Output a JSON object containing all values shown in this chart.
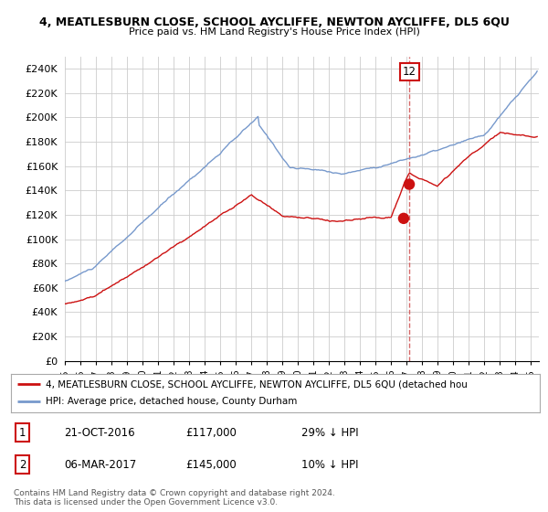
{
  "title1": "4, MEATLESBURN CLOSE, SCHOOL AYCLIFFE, NEWTON AYCLIFFE, DL5 6QU",
  "title2": "Price paid vs. HM Land Registry's House Price Index (HPI)",
  "ylabel_ticks": [
    "£0",
    "£20K",
    "£40K",
    "£60K",
    "£80K",
    "£100K",
    "£120K",
    "£140K",
    "£160K",
    "£180K",
    "£200K",
    "£220K",
    "£240K"
  ],
  "ytick_values": [
    0,
    20000,
    40000,
    60000,
    80000,
    100000,
    120000,
    140000,
    160000,
    180000,
    200000,
    220000,
    240000
  ],
  "ylim": [
    0,
    250000
  ],
  "xlim_start": 1995.0,
  "xlim_end": 2025.5,
  "hpi_color": "#7799cc",
  "price_color": "#cc1111",
  "vline_color": "#cc4444",
  "point1_date": 2016.81,
  "point1_price": 117000,
  "point2_date": 2017.17,
  "point2_price": 145000,
  "legend_label1": "4, MEATLESBURN CLOSE, SCHOOL AYCLIFFE, NEWTON AYCLIFFE, DL5 6QU (detached hou",
  "legend_label2": "HPI: Average price, detached house, County Durham",
  "table_row1_num": "1",
  "table_row1_date": "21-OCT-2016",
  "table_row1_price": "£117,000",
  "table_row1_hpi": "29% ↓ HPI",
  "table_row2_num": "2",
  "table_row2_date": "06-MAR-2017",
  "table_row2_price": "£145,000",
  "table_row2_hpi": "10% ↓ HPI",
  "footnote": "Contains HM Land Registry data © Crown copyright and database right 2024.\nThis data is licensed under the Open Government Licence v3.0.",
  "annotation_label": "12",
  "background_color": "#ffffff",
  "grid_color": "#cccccc"
}
